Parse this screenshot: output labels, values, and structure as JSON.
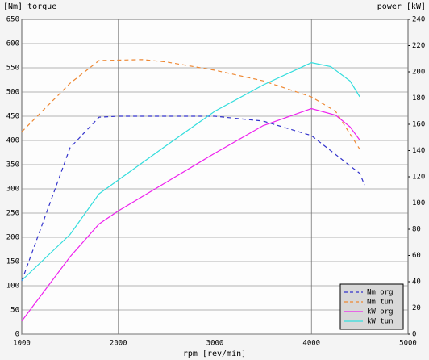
{
  "chart_data": {
    "type": "line",
    "y_label": "[Nm] torque",
    "y2_label": "power [kW]",
    "x_label": "rpm [rev/min]",
    "xlim": [
      1000,
      5000
    ],
    "xticks": [
      1000,
      2000,
      3000,
      4000,
      5000
    ],
    "ylim": [
      0,
      650
    ],
    "yticks": [
      0,
      50,
      100,
      150,
      200,
      250,
      300,
      350,
      400,
      450,
      500,
      550,
      600,
      650
    ],
    "y2lim": [
      0,
      240
    ],
    "y2ticks": [
      0,
      20,
      40,
      60,
      80,
      100,
      120,
      140,
      160,
      180,
      200,
      220,
      240
    ],
    "grid": true,
    "legend": "lower right",
    "series": [
      {
        "name": "Nm org",
        "color": "#3333cc",
        "dash": true,
        "x": [
          1000,
          1500,
          1800,
          2000,
          3000,
          3500,
          4000,
          4500,
          4550
        ],
        "values": [
          110,
          385,
          448,
          450,
          450,
          440,
          410,
          332,
          308
        ]
      },
      {
        "name": "Nm tun",
        "color": "#ee8833",
        "dash": true,
        "x": [
          1000,
          1500,
          1800,
          2250,
          2500,
          3000,
          3500,
          4000,
          4250,
          4500
        ],
        "values": [
          418,
          518,
          565,
          567,
          562,
          545,
          523,
          490,
          460,
          382
        ]
      },
      {
        "name": "kW org",
        "color": "#ee22ee",
        "dash": false,
        "axis": "y2",
        "x": [
          1000,
          1500,
          1800,
          2000,
          2500,
          3000,
          3500,
          4000,
          4250,
          4400,
          4500
        ],
        "values": [
          10,
          59,
          84,
          94,
          116,
          138,
          159,
          172,
          167,
          158,
          148
        ]
      },
      {
        "name": "kW tun",
        "color": "#33dddd",
        "dash": false,
        "axis": "y2",
        "x": [
          1000,
          1500,
          1800,
          2500,
          3000,
          3500,
          4000,
          4200,
          4400,
          4500
        ],
        "values": [
          41,
          76,
          107,
          144,
          170,
          190,
          207,
          204,
          193,
          181
        ]
      }
    ]
  }
}
